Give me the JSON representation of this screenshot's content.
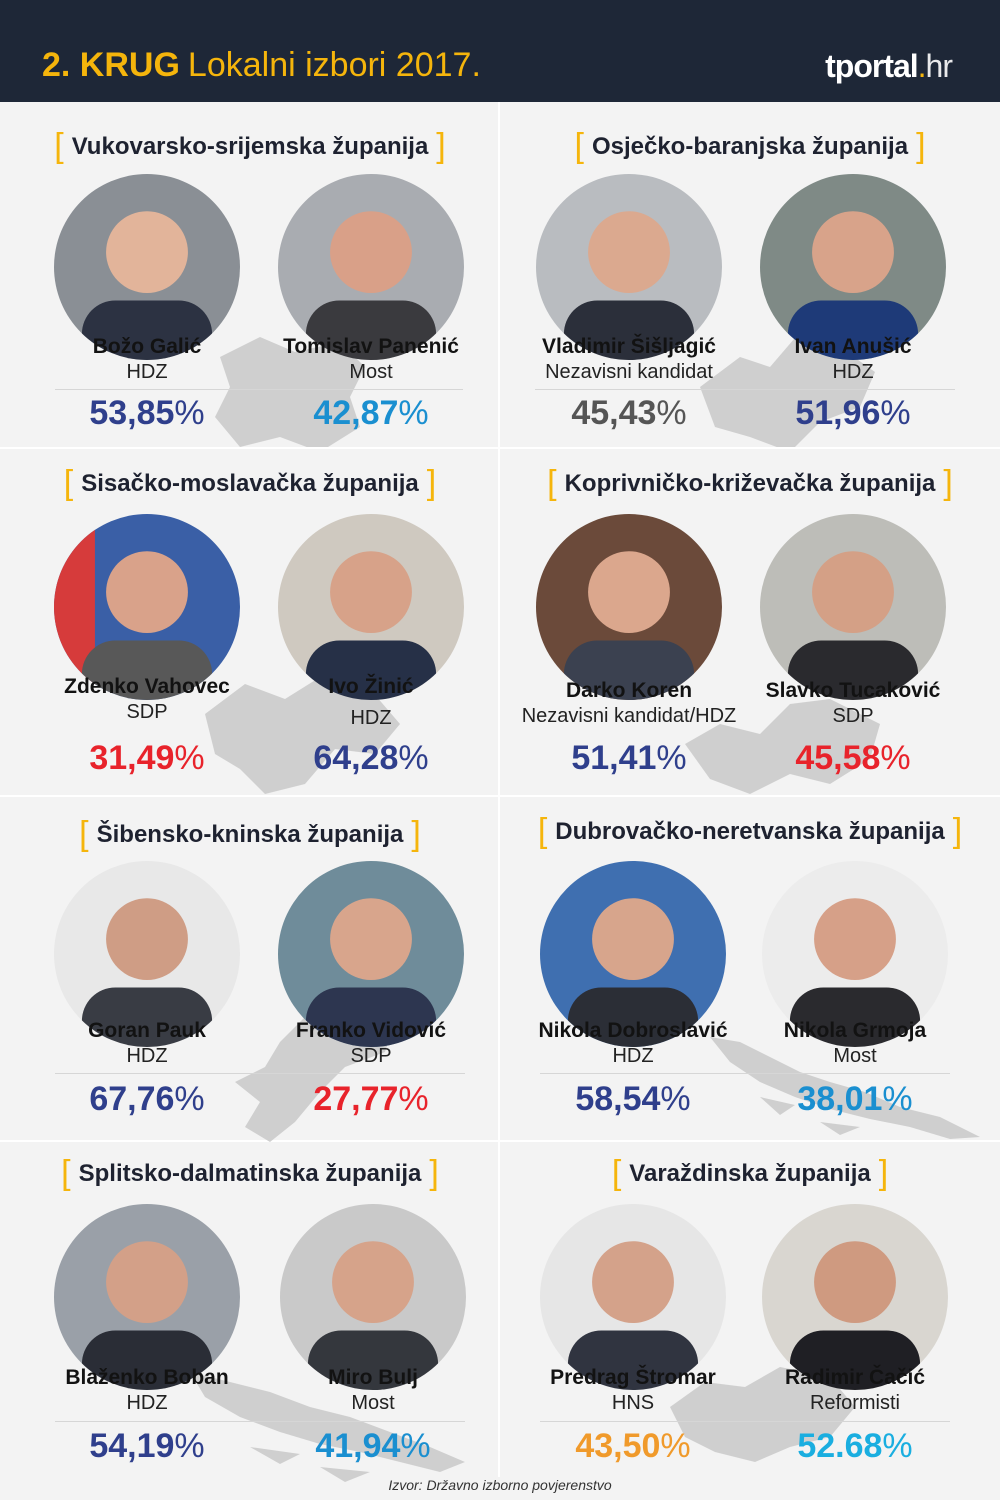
{
  "header": {
    "title_bold": "2. KRUG",
    "title_rest": "Lokalni izbori 2017.",
    "logo_main": "tportal",
    "logo_dot": ".",
    "logo_tld": "hr"
  },
  "colors": {
    "hdz": "#2f3f8c",
    "most": "#1a8fd0",
    "sdp": "#e8232b",
    "independent": "#555555",
    "hns": "#f09a2b",
    "reformisti": "#1aaee0",
    "accent": "#f5b50c",
    "header_bg": "#1e2737"
  },
  "counties": [
    {
      "name": "Vukovarsko-srijemska županija",
      "candidates": [
        {
          "name": "Božo Galić",
          "party": "HDZ",
          "result": "53,85",
          "color": "#2f3f8c"
        },
        {
          "name": "Tomislav Panenić",
          "party": "Most",
          "result": "42,87",
          "color": "#1a8fd0"
        }
      ]
    },
    {
      "name": "Osječko-baranjska županija",
      "candidates": [
        {
          "name": "Vladimir Šišljagić",
          "party": "Nezavisni kandidat",
          "result": "45,43",
          "color": "#555555"
        },
        {
          "name": "Ivan Anušić",
          "party": "HDZ",
          "result": "51,96",
          "color": "#2f3f8c"
        }
      ]
    },
    {
      "name": "Sisačko-moslavačka županija",
      "candidates": [
        {
          "name": "Zdenko Vahovec",
          "party": "SDP",
          "result": "31,49",
          "color": "#e8232b"
        },
        {
          "name": "Ivo Žinić",
          "party": "HDZ",
          "result": "64,28",
          "color": "#2f3f8c"
        }
      ]
    },
    {
      "name": "Koprivničko-križevačka županija",
      "candidates": [
        {
          "name": "Darko Koren",
          "party": "Nezavisni kandidat/HDZ",
          "result": "51,41",
          "color": "#2f3f8c"
        },
        {
          "name": "Slavko Tucaković",
          "party": "SDP",
          "result": "45,58",
          "color": "#e8232b"
        }
      ]
    },
    {
      "name": "Šibensko-kninska županija",
      "candidates": [
        {
          "name": "Goran Pauk",
          "party": "HDZ",
          "result": "67,76",
          "color": "#2f3f8c"
        },
        {
          "name": "Franko Vidović",
          "party": "SDP",
          "result": "27,77",
          "color": "#e8232b"
        }
      ]
    },
    {
      "name": "Dubrovačko-neretvanska županija",
      "candidates": [
        {
          "name": "Nikola Dobroslavić",
          "party": "HDZ",
          "result": "58,54",
          "color": "#2f3f8c"
        },
        {
          "name": "Nikola Grmoja",
          "party": "Most",
          "result": "38,01",
          "color": "#1a8fd0"
        }
      ]
    },
    {
      "name": "Splitsko-dalmatinska županija",
      "candidates": [
        {
          "name": "Blaženko Boban",
          "party": "HDZ",
          "result": "54,19",
          "color": "#2f3f8c"
        },
        {
          "name": "Miro Bulj",
          "party": "Most",
          "result": "41,94",
          "color": "#1a8fd0"
        }
      ]
    },
    {
      "name": "Varaždinska županija",
      "candidates": [
        {
          "name": "Predrag Štromar",
          "party": "HNS",
          "result": "43,50",
          "color": "#f09a2b"
        },
        {
          "name": "Radimir Čačić",
          "party": "Reformisti",
          "result": "52.68",
          "color": "#1aaee0"
        }
      ]
    }
  ],
  "percent_sign": "%",
  "source": "Izvor: Državno izborno povjerenstvo"
}
